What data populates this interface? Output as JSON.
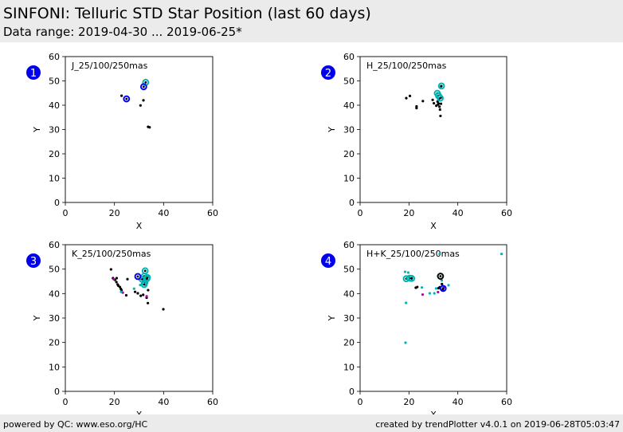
{
  "header": {
    "title": "SINFONI: Telluric STD Star Position (last 60 days)",
    "subtitle": "Data range: 2019-04-30 ... 2019-06-25*"
  },
  "footer": {
    "left": "powered by QC: www.eso.org/HC",
    "right": "created by trendPlotter v4.0.1 on 2019-06-28T05:03:47"
  },
  "colors": {
    "badge": "#0000ee",
    "black": "#000000",
    "cyan": "#00b4b4",
    "blue": "#0000ff",
    "magenta": "#b400b4"
  },
  "chart_data": [
    {
      "type": "scatter",
      "badge": "1",
      "label": "J_25/100/250mas",
      "xlabel": "X",
      "ylabel": "Y",
      "xlim": [
        0,
        60
      ],
      "ylim": [
        0,
        60
      ],
      "xticks": [
        0,
        20,
        40,
        60
      ],
      "yticks": [
        0,
        10,
        20,
        30,
        40,
        50,
        60
      ],
      "series": [
        {
          "color": "black",
          "points": [
            [
              22.9,
              43.9
            ],
            [
              31.8,
              42.0
            ],
            [
              30.6,
              39.9
            ],
            [
              33.7,
              31.1
            ],
            [
              34.3,
              30.9
            ]
          ]
        },
        {
          "color": "cyan",
          "ring": true,
          "points": [
            [
              32.7,
              49.4
            ]
          ]
        },
        {
          "color": "blue",
          "ring": true,
          "points": [
            [
              31.9,
              47.6
            ],
            [
              24.9,
              42.6
            ]
          ]
        }
      ]
    },
    {
      "type": "scatter",
      "badge": "2",
      "label": "H_25/100/250mas",
      "xlabel": "X",
      "ylabel": "Y",
      "xlim": [
        0,
        60
      ],
      "ylim": [
        0,
        60
      ],
      "xticks": [
        0,
        20,
        40,
        60
      ],
      "yticks": [
        0,
        10,
        20,
        30,
        40,
        50,
        60
      ],
      "series": [
        {
          "color": "black",
          "points": [
            [
              18.9,
              42.9
            ],
            [
              20.4,
              43.8
            ],
            [
              23.1,
              39.5
            ],
            [
              23.1,
              38.8
            ],
            [
              25.7,
              41.7
            ],
            [
              29.7,
              42.2
            ],
            [
              30.2,
              40.8
            ],
            [
              31.2,
              39.8
            ],
            [
              31.7,
              41.5
            ],
            [
              31.9,
              40.3
            ],
            [
              32.2,
              42.6
            ],
            [
              32.5,
              39.4
            ],
            [
              32.7,
              38.2
            ],
            [
              33.1,
              40.6
            ],
            [
              33.4,
              43.3
            ],
            [
              32.9,
              35.6
            ],
            [
              33.2,
              47.8
            ],
            [
              32.1,
              40.7
            ]
          ]
        },
        {
          "color": "cyan",
          "ring": true,
          "points": [
            [
              33.3,
              47.9
            ],
            [
              31.6,
              44.9
            ],
            [
              32.1,
              43.9
            ],
            [
              32.8,
              42.9
            ]
          ]
        }
      ]
    },
    {
      "type": "scatter",
      "badge": "3",
      "label": "K_25/100/250mas",
      "xlabel": "X",
      "ylabel": "Y",
      "xlim": [
        0,
        60
      ],
      "ylim": [
        0,
        60
      ],
      "xticks": [
        0,
        20,
        40,
        60
      ],
      "yticks": [
        0,
        10,
        20,
        30,
        40,
        50,
        60
      ],
      "series": [
        {
          "color": "black",
          "points": [
            [
              18.6,
              49.9
            ],
            [
              19.4,
              46.3
            ],
            [
              20.2,
              45.6
            ],
            [
              20.9,
              46.3
            ],
            [
              20.8,
              44.7
            ],
            [
              21.3,
              43.7
            ],
            [
              21.6,
              43.2
            ],
            [
              22.2,
              42.7
            ],
            [
              22.6,
              41.9
            ],
            [
              22.9,
              41.4
            ],
            [
              24.8,
              39.3
            ],
            [
              25.3,
              45.9
            ],
            [
              28.4,
              40.7
            ],
            [
              29.5,
              40.1
            ],
            [
              30.7,
              39.1
            ],
            [
              31.7,
              39.5
            ],
            [
              33.1,
              38.3
            ],
            [
              33.6,
              36.1
            ],
            [
              33.7,
              41.4
            ],
            [
              30.2,
              45.9
            ],
            [
              39.9,
              33.6
            ]
          ]
        },
        {
          "color": "magenta",
          "points": [
            [
              19.7,
              45.9
            ],
            [
              23.4,
              40.4
            ],
            [
              33.1,
              38.9
            ]
          ]
        },
        {
          "color": "cyan",
          "ring": true,
          "points": [
            [
              32.5,
              49.3
            ],
            [
              32.1,
              47.1
            ],
            [
              33.4,
              46.6
            ],
            [
              31.3,
              45.8
            ],
            [
              32.4,
              44.6
            ],
            [
              32.1,
              43.7
            ],
            [
              33.2,
              46.1
            ]
          ]
        },
        {
          "color": "cyan",
          "points": [
            [
              22.7,
              40.7
            ],
            [
              28.0,
              42.0
            ],
            [
              30.5,
              43.5
            ]
          ]
        },
        {
          "color": "blue",
          "ring": true,
          "points": [
            [
              29.5,
              47.0
            ]
          ]
        }
      ]
    },
    {
      "type": "scatter",
      "badge": "4",
      "label": "H+K_25/100/250mas",
      "xlabel": "X",
      "ylabel": "Y",
      "xlim": [
        0,
        60
      ],
      "ylim": [
        0,
        60
      ],
      "xticks": [
        0,
        20,
        40,
        60
      ],
      "yticks": [
        0,
        10,
        20,
        30,
        40,
        50,
        60
      ],
      "series": [
        {
          "color": "cyan",
          "points": [
            [
              57.9,
              56.2
            ],
            [
              32.6,
              56.2
            ],
            [
              18.4,
              48.9
            ],
            [
              19.7,
              48.6
            ],
            [
              18.8,
              36.2
            ],
            [
              18.6,
              19.9
            ],
            [
              28.5,
              40.1
            ],
            [
              30.4,
              40.1
            ],
            [
              31.1,
              42.1
            ],
            [
              36.2,
              43.4
            ],
            [
              33.4,
              45.4
            ],
            [
              25.3,
              42.5
            ]
          ]
        },
        {
          "color": "cyan",
          "ring": true,
          "points": [
            [
              18.9,
              46.1
            ],
            [
              20.3,
              46.3
            ],
            [
              21.1,
              46.2
            ]
          ]
        },
        {
          "color": "black",
          "ring": true,
          "points": [
            [
              32.9,
              47.1
            ]
          ]
        },
        {
          "color": "black",
          "points": [
            [
              22.8,
              42.4
            ],
            [
              23.4,
              42.7
            ],
            [
              32.6,
              42.6
            ],
            [
              33.5,
              43.9
            ],
            [
              33.9,
              41.8
            ],
            [
              32.1,
              42.2
            ]
          ]
        },
        {
          "color": "magenta",
          "points": [
            [
              25.6,
              39.6
            ],
            [
              31.9,
              40.6
            ],
            [
              34.2,
              42.4
            ]
          ]
        },
        {
          "color": "blue",
          "ring": true,
          "points": [
            [
              34.0,
              42.1
            ]
          ]
        }
      ]
    }
  ]
}
